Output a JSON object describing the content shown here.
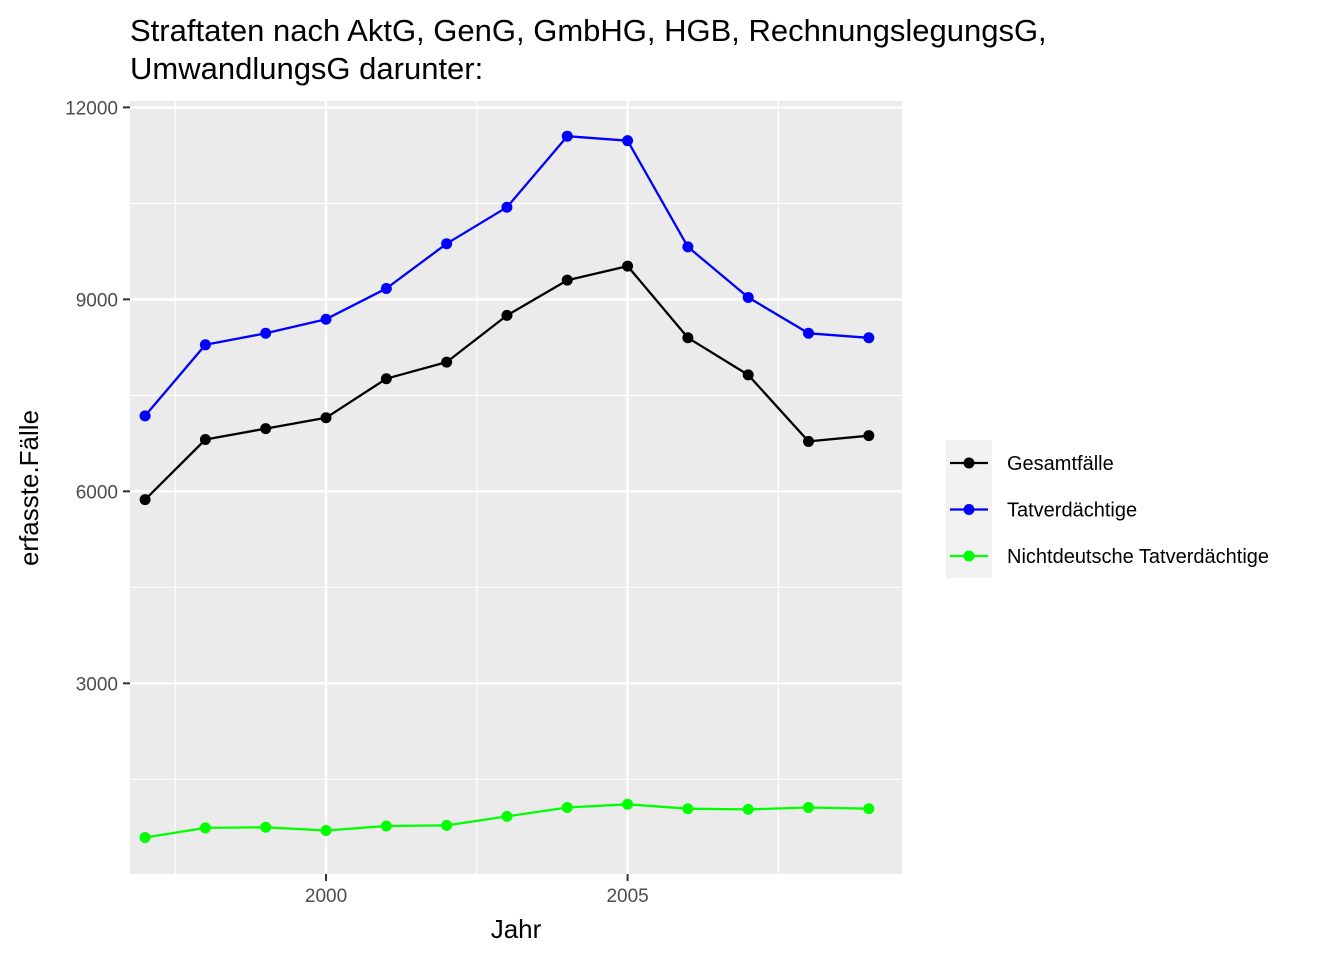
{
  "chart_data": {
    "type": "line",
    "title_lines": [
      "Straftaten nach AktG, GenG, GmbHG, HGB, RechnungslegungsG,",
      "UmwandlungsG darunter:"
    ],
    "xlabel": "Jahr",
    "ylabel": "erfasste.Fälle",
    "x": [
      1997,
      1998,
      1999,
      2000,
      2001,
      2002,
      2003,
      2004,
      2005,
      2006,
      2007,
      2008,
      2009
    ],
    "xlim": [
      1996.75,
      2009.55
    ],
    "ylim": [
      20,
      12100
    ],
    "x_ticks": [
      2000,
      2005
    ],
    "x_tick_labels": [
      "2000",
      "2005"
    ],
    "x_minor_ticks": [
      1997.5,
      2002.5,
      2007.5
    ],
    "y_ticks": [
      3000,
      6000,
      9000,
      12000
    ],
    "y_tick_labels": [
      "3000",
      "6000",
      "9000",
      "12000"
    ],
    "y_minor_ticks": [
      1500,
      4500,
      7500,
      10500
    ],
    "grid": true,
    "legend_position": "right",
    "series": [
      {
        "name": "Gesamtfälle",
        "color": "#000000",
        "values": [
          5870,
          6810,
          6980,
          7150,
          7760,
          8020,
          8750,
          9300,
          9520,
          8400,
          7820,
          6780,
          6870
        ]
      },
      {
        "name": "Tatverdächtige",
        "color": "#0000ff",
        "values": [
          7180,
          8290,
          8470,
          8690,
          9170,
          9870,
          10440,
          11550,
          11480,
          9820,
          9030,
          8470,
          8400
        ]
      },
      {
        "name": "Nichtdeutsche Tatverdächtige",
        "color": "#00ff00",
        "values": [
          590,
          740,
          750,
          700,
          770,
          780,
          920,
          1060,
          1110,
          1040,
          1030,
          1060,
          1040
        ]
      }
    ]
  }
}
